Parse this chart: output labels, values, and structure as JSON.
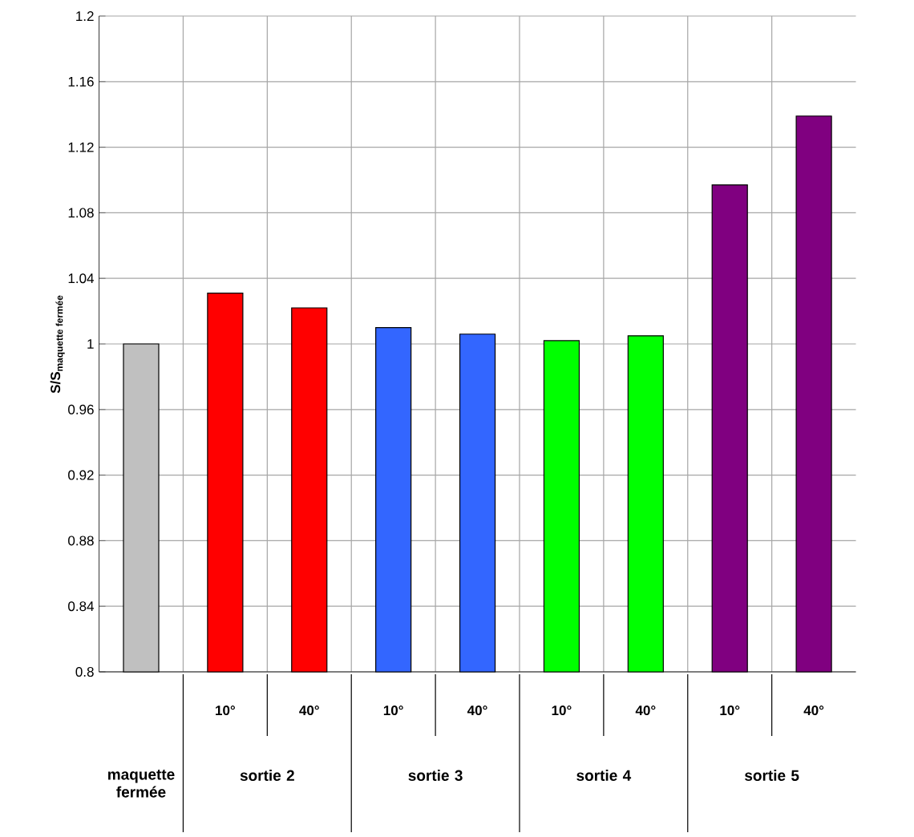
{
  "chart_data": {
    "type": "bar",
    "ylabel": "\\textbf{S/S}_{\\textbf{maquette fermée}}",
    "categories": [
      null,
      "10°",
      "40°",
      "10°",
      "40°",
      "10°",
      "40°",
      "10°",
      "40°"
    ],
    "values": [
      1.0,
      1.031,
      1.022,
      1.01,
      1.006,
      1.002,
      1.005,
      1.097,
      1.139
    ],
    "colors": [
      "#c0c0c0",
      "#ff0000",
      "#ff0000",
      "#3366ff",
      "#3366ff",
      "#00ff00",
      "#00ff00",
      "#800080",
      "#800080"
    ],
    "annotations": [
      "maquette fermée",
      "sortie 2",
      "sortie 3",
      "sortie 4",
      "sortie 5"
    ],
    "ylim": [
      0.8,
      1.2
    ],
    "yticks": [
      0.8,
      0.84,
      0.88,
      0.92,
      0.96,
      1,
      1.04,
      1.08,
      1.12,
      1.16,
      1.2
    ],
    "grid": true
  }
}
